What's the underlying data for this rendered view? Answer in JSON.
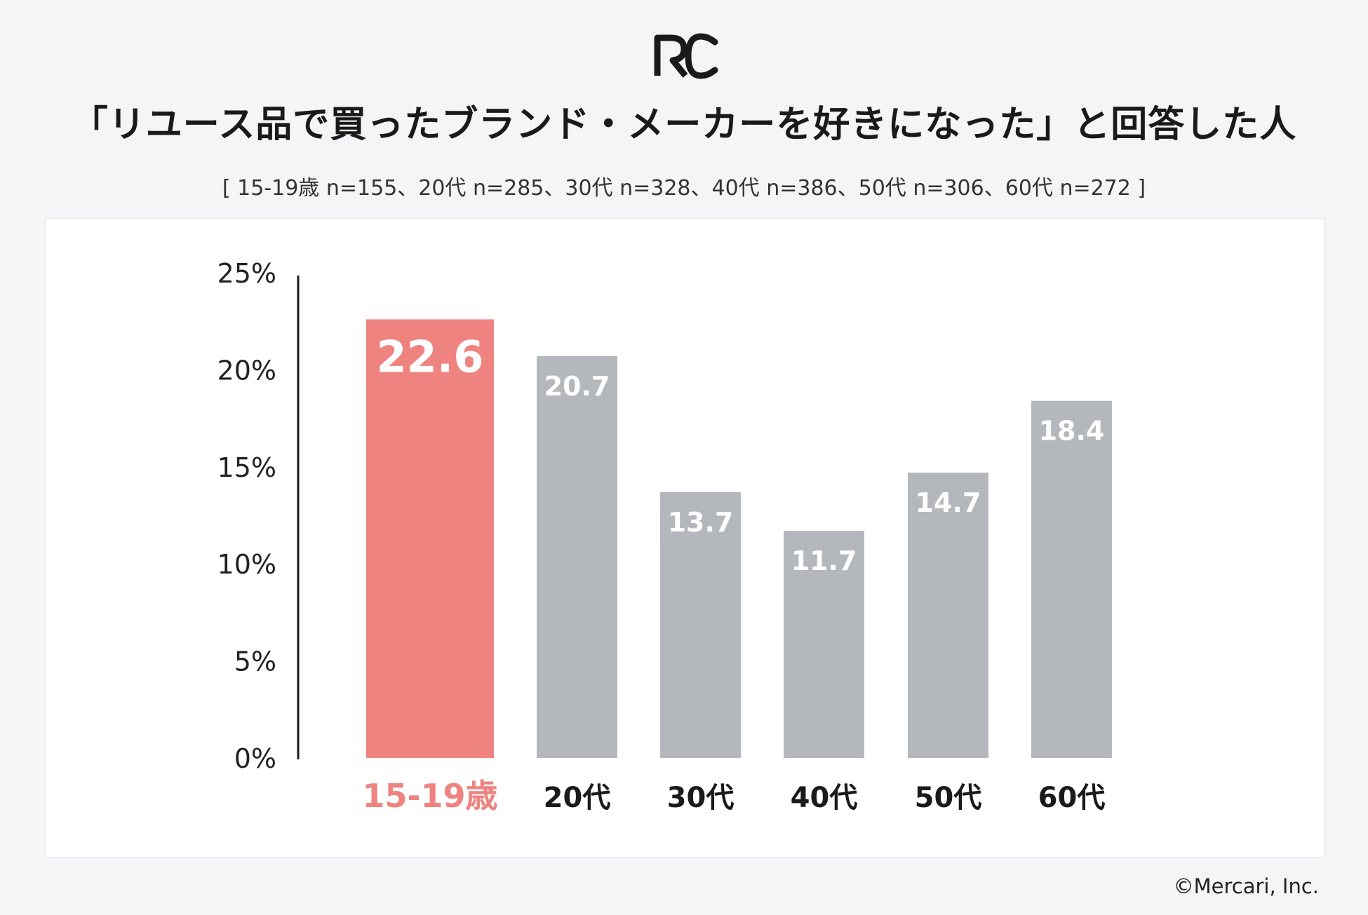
{
  "header": {
    "title": "「リユース品で買ったブランド・メーカーを好きになった」と回答した人",
    "subtitle": "[ 15-19歳 n=155、20代 n=285、30代 n=328、40代 n=386、50代 n=306、60代 n=272 ]",
    "logo_text": "RC"
  },
  "footer": {
    "credit": "©Mercari, Inc."
  },
  "colors": {
    "highlight": "#ee8380",
    "bar": "#b4b8bc",
    "axis": "#1a1a1a",
    "text": "#1a1a1a"
  },
  "chart_data": {
    "type": "bar",
    "title": "「リユース品で買ったブランド・メーカーを好きになった」と回答した人",
    "categories": [
      "15-19歳",
      "20代",
      "30代",
      "40代",
      "50代",
      "60代"
    ],
    "values": [
      22.6,
      20.7,
      13.7,
      11.7,
      14.7,
      18.4
    ],
    "value_labels": [
      "22.6",
      "20.7",
      "13.7",
      "11.7",
      "14.7",
      "18.4"
    ],
    "highlight_index": 0,
    "ylim": [
      0,
      25
    ],
    "yticks": [
      0,
      5,
      10,
      15,
      20,
      25
    ],
    "ytick_labels": [
      "0%",
      "5%",
      "10%",
      "15%",
      "20%",
      "25%"
    ],
    "xlabel": "",
    "ylabel": "",
    "grid": false,
    "legend": "none"
  }
}
